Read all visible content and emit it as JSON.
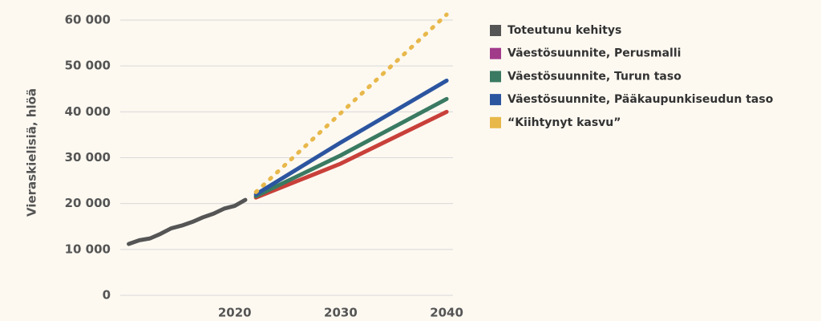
{
  "chart_data": {
    "type": "line",
    "ylabel": "Vieraskielisiä, hlöä",
    "xlim": [
      2009.2,
      2040.6
    ],
    "xticks": [
      2020,
      2030,
      2040
    ],
    "ylim": [
      0,
      60000
    ],
    "yticks": [
      {
        "value": 0,
        "label": "0"
      },
      {
        "value": 10000,
        "label": "10 000"
      },
      {
        "value": 20000,
        "label": "20 000"
      },
      {
        "value": 30000,
        "label": "30 000"
      },
      {
        "value": 40000,
        "label": "40 000"
      },
      {
        "value": 50000,
        "label": "50 000"
      },
      {
        "value": 60000,
        "label": "60 000"
      }
    ],
    "grid": true,
    "legend": "right",
    "series": [
      {
        "name": "Toteutunu kehitys",
        "color": "#555555",
        "x": [
          2010,
          2011,
          2012,
          2013,
          2014,
          2015,
          2016,
          2017,
          2018,
          2019,
          2020,
          2021
        ],
        "values": [
          11200,
          12000,
          12400,
          13400,
          14600,
          15200,
          16000,
          17000,
          17800,
          18900,
          19500,
          20800
        ]
      },
      {
        "name": "Väestösuunnite, Perusmalli",
        "color": "#c9403a",
        "legend_color": "#a23a8a",
        "x": [
          2022,
          2030,
          2040
        ],
        "values": [
          21300,
          28700,
          40000
        ]
      },
      {
        "name": "Väestösuunnite, Turun taso",
        "color": "#3a7a62",
        "x": [
          2022,
          2030,
          2040
        ],
        "values": [
          21600,
          30500,
          42800
        ]
      },
      {
        "name": "Väestösuunnite, Pääkaupunkiseudun taso",
        "color": "#2c55a0",
        "x": [
          2022,
          2030,
          2040
        ],
        "values": [
          22000,
          33300,
          46800
        ]
      },
      {
        "name": "“Kiihtynyt kasvu”",
        "color": "#e8b84b",
        "dashed": true,
        "x": [
          2022,
          2040
        ],
        "values": [
          22500,
          61200
        ]
      }
    ]
  }
}
